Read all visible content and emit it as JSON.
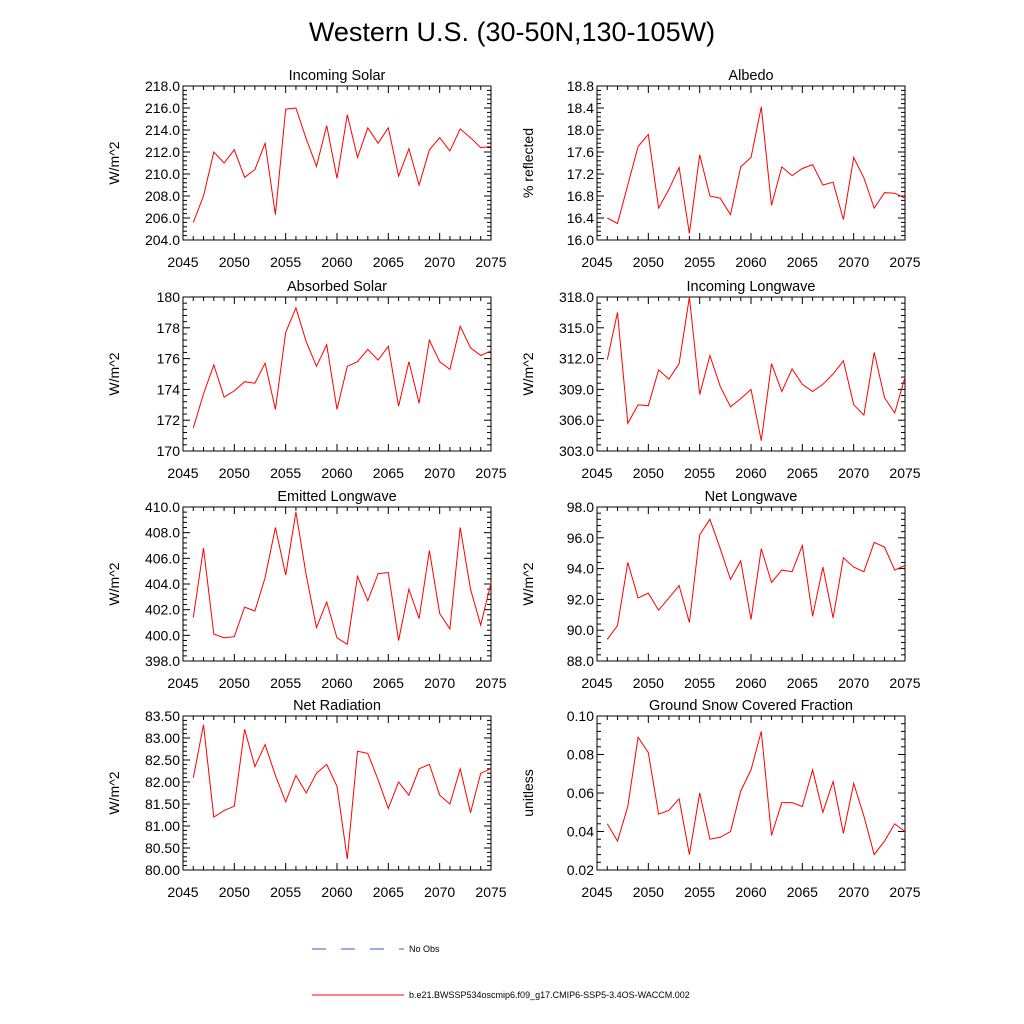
{
  "figure": {
    "title": "Western U.S. (30-50N,130-105W)",
    "series_color": "#ff0000",
    "legend": [
      {
        "label": "No Obs",
        "style": "dashed",
        "color": "#3b5bd6"
      },
      {
        "label": "b.e21.BWSSP534oscmip6.f09_g17.CMIP6-SSP5-3.4OS-WACCM.002",
        "style": "solid",
        "color": "#ff0000"
      }
    ]
  },
  "chart_data": [
    {
      "type": "line",
      "title": "Incoming Solar",
      "xlabel": "",
      "ylabel": "W/m^2",
      "xlim": [
        2045,
        2075
      ],
      "ylim": [
        204,
        218
      ],
      "xticks": [
        "2045",
        "2050",
        "2055",
        "2060",
        "2065",
        "2070",
        "2075"
      ],
      "yticks": [
        "204.0",
        "206.0",
        "208.0",
        "210.0",
        "212.0",
        "214.0",
        "216.0",
        "218.0"
      ],
      "x": [
        2046,
        2047,
        2048,
        2049,
        2050,
        2051,
        2052,
        2053,
        2054,
        2055,
        2056,
        2057,
        2058,
        2059,
        2060,
        2061,
        2062,
        2063,
        2064,
        2065,
        2066,
        2067,
        2068,
        2069,
        2070,
        2071,
        2072,
        2073,
        2074,
        2075
      ],
      "series": [
        {
          "name": "b.e21.BWSSP534oscmip6.f09_g17.CMIP6-SSP5-3.4OS-WACCM.002",
          "values": [
            205.6,
            208.0,
            212.0,
            211.0,
            212.2,
            209.7,
            210.4,
            212.8,
            206.3,
            215.9,
            216.0,
            213.2,
            210.7,
            214.4,
            209.6,
            215.4,
            211.5,
            214.2,
            212.8,
            214.2,
            209.8,
            212.3,
            209.0,
            212.2,
            213.3,
            212.1,
            214.1,
            213.3,
            212.4,
            212.5
          ]
        }
      ]
    },
    {
      "type": "line",
      "title": "Albedo",
      "xlabel": "",
      "ylabel": "% reflected",
      "xlim": [
        2045,
        2075
      ],
      "ylim": [
        16.0,
        18.8
      ],
      "xticks": [
        "2045",
        "2050",
        "2055",
        "2060",
        "2065",
        "2070",
        "2075"
      ],
      "yticks": [
        "16.0",
        "16.4",
        "16.8",
        "17.2",
        "17.6",
        "18.0",
        "18.4",
        "18.8"
      ],
      "x": [
        2046,
        2047,
        2048,
        2049,
        2050,
        2051,
        2052,
        2053,
        2054,
        2055,
        2056,
        2057,
        2058,
        2059,
        2060,
        2061,
        2062,
        2063,
        2064,
        2065,
        2066,
        2067,
        2068,
        2069,
        2070,
        2071,
        2072,
        2073,
        2074,
        2075
      ],
      "series": [
        {
          "name": "b.e21.BWSSP534oscmip6.f09_g17.CMIP6-SSP5-3.4OS-WACCM.002",
          "values": [
            16.4,
            16.3,
            17.0,
            17.7,
            17.92,
            16.58,
            16.92,
            17.32,
            16.12,
            17.55,
            16.8,
            16.76,
            16.46,
            17.33,
            17.5,
            18.42,
            16.63,
            17.33,
            17.17,
            17.3,
            17.37,
            17.0,
            17.05,
            16.37,
            17.5,
            17.13,
            16.58,
            16.86,
            16.85,
            16.76
          ]
        }
      ]
    },
    {
      "type": "line",
      "title": "Absorbed Solar",
      "xlabel": "",
      "ylabel": "W/m^2",
      "xlim": [
        2045,
        2075
      ],
      "ylim": [
        170,
        180
      ],
      "xticks": [
        "2045",
        "2050",
        "2055",
        "2060",
        "2065",
        "2070",
        "2075"
      ],
      "yticks": [
        "170",
        "172",
        "174",
        "176",
        "178",
        "180"
      ],
      "x": [
        2046,
        2047,
        2048,
        2049,
        2050,
        2051,
        2052,
        2053,
        2054,
        2055,
        2056,
        2057,
        2058,
        2059,
        2060,
        2061,
        2062,
        2063,
        2064,
        2065,
        2066,
        2067,
        2068,
        2069,
        2070,
        2071,
        2072,
        2073,
        2074,
        2075
      ],
      "series": [
        {
          "name": "b.e21.BWSSP534oscmip6.f09_g17.CMIP6-SSP5-3.4OS-WACCM.002",
          "values": [
            171.5,
            173.7,
            175.6,
            173.5,
            173.9,
            174.5,
            174.4,
            175.7,
            172.7,
            177.7,
            179.3,
            177.1,
            175.5,
            176.9,
            172.7,
            175.5,
            175.8,
            176.6,
            175.9,
            176.8,
            172.9,
            175.8,
            173.1,
            177.2,
            175.8,
            175.3,
            178.1,
            176.7,
            176.2,
            176.5
          ]
        }
      ]
    },
    {
      "type": "line",
      "title": "Incoming Longwave",
      "xlabel": "",
      "ylabel": "W/m^2",
      "xlim": [
        2045,
        2075
      ],
      "ylim": [
        303,
        318
      ],
      "xticks": [
        "2045",
        "2050",
        "2055",
        "2060",
        "2065",
        "2070",
        "2075"
      ],
      "yticks": [
        "303.0",
        "306.0",
        "309.0",
        "312.0",
        "315.0",
        "318.0"
      ],
      "x": [
        2046,
        2047,
        2048,
        2049,
        2050,
        2051,
        2052,
        2053,
        2054,
        2055,
        2056,
        2057,
        2058,
        2059,
        2060,
        2061,
        2062,
        2063,
        2064,
        2065,
        2066,
        2067,
        2068,
        2069,
        2070,
        2071,
        2072,
        2073,
        2074,
        2075
      ],
      "series": [
        {
          "name": "b.e21.BWSSP534oscmip6.f09_g17.CMIP6-SSP5-3.4OS-WACCM.002",
          "values": [
            311.9,
            316.5,
            305.7,
            307.5,
            307.4,
            310.9,
            310.0,
            311.5,
            318.0,
            308.5,
            312.3,
            309.3,
            307.3,
            308.1,
            309.0,
            304.0,
            311.5,
            308.8,
            311.0,
            309.5,
            308.8,
            309.5,
            310.5,
            311.8,
            307.5,
            306.5,
            312.6,
            308.2,
            306.7,
            310.2
          ]
        }
      ]
    },
    {
      "type": "line",
      "title": "Emitted Longwave",
      "xlabel": "",
      "ylabel": "W/m^2",
      "xlim": [
        2045,
        2075
      ],
      "ylim": [
        398,
        410
      ],
      "xticks": [
        "2045",
        "2050",
        "2055",
        "2060",
        "2065",
        "2070",
        "2075"
      ],
      "yticks": [
        "398.0",
        "400.0",
        "402.0",
        "404.0",
        "406.0",
        "408.0",
        "410.0"
      ],
      "x": [
        2046,
        2047,
        2048,
        2049,
        2050,
        2051,
        2052,
        2053,
        2054,
        2055,
        2056,
        2057,
        2058,
        2059,
        2060,
        2061,
        2062,
        2063,
        2064,
        2065,
        2066,
        2067,
        2068,
        2069,
        2070,
        2071,
        2072,
        2073,
        2074,
        2075
      ],
      "series": [
        {
          "name": "b.e21.BWSSP534oscmip6.f09_g17.CMIP6-SSP5-3.4OS-WACCM.002",
          "values": [
            401.4,
            406.8,
            400.1,
            399.8,
            399.9,
            402.2,
            401.9,
            404.5,
            408.4,
            404.7,
            409.6,
            404.7,
            400.6,
            402.6,
            399.8,
            399.3,
            404.6,
            402.7,
            404.8,
            404.9,
            399.6,
            403.6,
            401.3,
            406.6,
            401.7,
            400.5,
            408.4,
            403.6,
            400.8,
            404.1
          ]
        }
      ]
    },
    {
      "type": "line",
      "title": "Net Longwave",
      "xlabel": "",
      "ylabel": "W/m^2",
      "xlim": [
        2045,
        2075
      ],
      "ylim": [
        88,
        98
      ],
      "xticks": [
        "2045",
        "2050",
        "2055",
        "2060",
        "2065",
        "2070",
        "2075"
      ],
      "yticks": [
        "88.0",
        "90.0",
        "92.0",
        "94.0",
        "96.0",
        "98.0"
      ],
      "x": [
        2046,
        2047,
        2048,
        2049,
        2050,
        2051,
        2052,
        2053,
        2054,
        2055,
        2056,
        2057,
        2058,
        2059,
        2060,
        2061,
        2062,
        2063,
        2064,
        2065,
        2066,
        2067,
        2068,
        2069,
        2070,
        2071,
        2072,
        2073,
        2074,
        2075
      ],
      "series": [
        {
          "name": "b.e21.BWSSP534oscmip6.f09_g17.CMIP6-SSP5-3.4OS-WACCM.002",
          "values": [
            89.4,
            90.3,
            94.4,
            92.1,
            92.4,
            91.3,
            92.1,
            92.9,
            90.5,
            96.2,
            97.2,
            95.3,
            93.3,
            94.5,
            90.7,
            95.3,
            93.1,
            93.9,
            93.8,
            95.5,
            90.9,
            94.1,
            90.8,
            94.7,
            94.1,
            93.8,
            95.7,
            95.4,
            93.9,
            94.2
          ]
        }
      ]
    },
    {
      "type": "line",
      "title": "Net Radiation",
      "xlabel": "",
      "ylabel": "W/m^2",
      "xlim": [
        2045,
        2075
      ],
      "ylim": [
        80.0,
        83.5
      ],
      "xticks": [
        "2045",
        "2050",
        "2055",
        "2060",
        "2065",
        "2070",
        "2075"
      ],
      "yticks": [
        "80.00",
        "80.50",
        "81.00",
        "81.50",
        "82.00",
        "82.50",
        "83.00",
        "83.50"
      ],
      "x": [
        2046,
        2047,
        2048,
        2049,
        2050,
        2051,
        2052,
        2053,
        2054,
        2055,
        2056,
        2057,
        2058,
        2059,
        2060,
        2061,
        2062,
        2063,
        2064,
        2065,
        2066,
        2067,
        2068,
        2069,
        2070,
        2071,
        2072,
        2073,
        2074,
        2075
      ],
      "series": [
        {
          "name": "b.e21.BWSSP534oscmip6.f09_g17.CMIP6-SSP5-3.4OS-WACCM.002",
          "values": [
            82.1,
            83.3,
            81.2,
            81.35,
            81.45,
            83.2,
            82.35,
            82.85,
            82.15,
            81.55,
            82.15,
            81.75,
            82.2,
            82.4,
            81.9,
            80.25,
            82.7,
            82.65,
            82.05,
            81.4,
            82.0,
            81.7,
            82.3,
            82.4,
            81.7,
            81.5,
            82.3,
            81.3,
            82.2,
            82.3
          ]
        }
      ]
    },
    {
      "type": "line",
      "title": "Ground Snow Covered Fraction",
      "xlabel": "",
      "ylabel": "unitless",
      "xlim": [
        2045,
        2075
      ],
      "ylim": [
        0.02,
        0.1
      ],
      "xticks": [
        "2045",
        "2050",
        "2055",
        "2060",
        "2065",
        "2070",
        "2075"
      ],
      "yticks": [
        "0.02",
        "0.04",
        "0.06",
        "0.08",
        "0.10"
      ],
      "x": [
        2046,
        2047,
        2048,
        2049,
        2050,
        2051,
        2052,
        2053,
        2054,
        2055,
        2056,
        2057,
        2058,
        2059,
        2060,
        2061,
        2062,
        2063,
        2064,
        2065,
        2066,
        2067,
        2068,
        2069,
        2070,
        2071,
        2072,
        2073,
        2074,
        2075
      ],
      "series": [
        {
          "name": "b.e21.BWSSP534oscmip6.f09_g17.CMIP6-SSP5-3.4OS-WACCM.002",
          "values": [
            0.044,
            0.035,
            0.053,
            0.089,
            0.081,
            0.049,
            0.051,
            0.057,
            0.028,
            0.06,
            0.036,
            0.037,
            0.04,
            0.061,
            0.072,
            0.092,
            0.038,
            0.055,
            0.055,
            0.053,
            0.072,
            0.05,
            0.066,
            0.039,
            0.065,
            0.048,
            0.028,
            0.035,
            0.044,
            0.04
          ]
        }
      ]
    }
  ]
}
